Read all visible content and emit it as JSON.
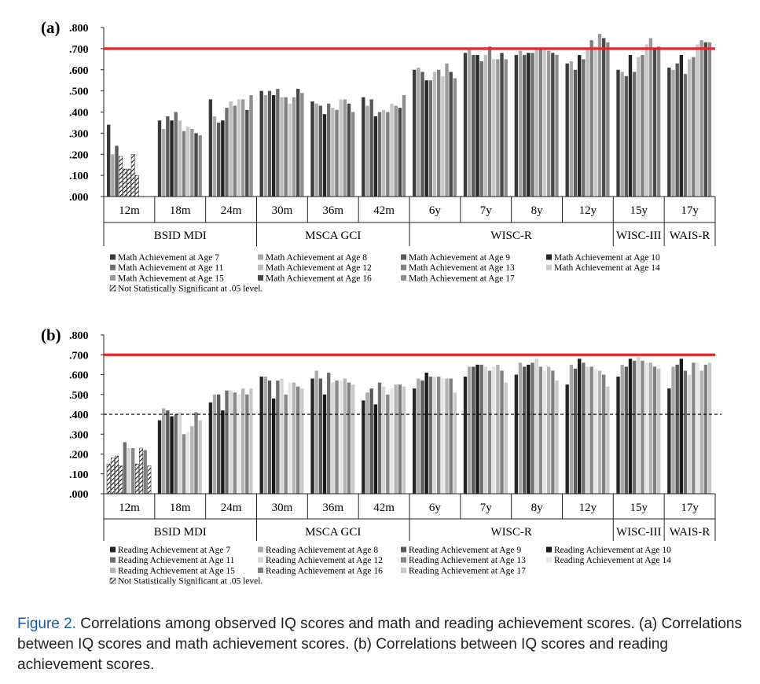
{
  "figure": {
    "caption_label": "Figure 2.",
    "caption_text": "Correlations among observed IQ scores and math and reading achievement scores. (a) Correlations between IQ scores and math achievement scores. (b) Correlations between IQ scores and reading achievement scores."
  },
  "chart_data": [
    {
      "type": "bar",
      "panel_label": "(a)",
      "title": "Correlations between IQ scores and math achievement scores",
      "ylim": [
        0,
        0.8
      ],
      "yticks": [
        ".000",
        ".100",
        ".200",
        ".300",
        ".400",
        ".500",
        ".600",
        ".700",
        ".800"
      ],
      "reference_line": {
        "value": 0.7,
        "color": "#e8262a"
      },
      "dashed_line": null,
      "categories": [
        "12m",
        "18m",
        "24m",
        "30m",
        "36m",
        "42m",
        "6y",
        "7y",
        "8y",
        "12y",
        "15y",
        "17y"
      ],
      "groups": [
        {
          "label": "BSID MDI",
          "categories": [
            "12m",
            "18m",
            "24m"
          ]
        },
        {
          "label": "MSCA GCI",
          "categories": [
            "30m",
            "36m",
            "42m"
          ]
        },
        {
          "label": "WISC-R",
          "categories": [
            "6y",
            "7y",
            "8y",
            "12y"
          ]
        },
        {
          "label": "WISC-III",
          "categories": [
            "15y"
          ]
        },
        {
          "label": "WAIS-R",
          "categories": [
            "17y"
          ]
        }
      ],
      "series": [
        {
          "name": "Math Achievement at Age 7",
          "color": "#3a3a3a",
          "values": [
            0.34,
            0.36,
            0.46,
            0.5,
            0.45,
            0.47,
            0.6,
            0.68,
            0.67,
            0.63,
            0.6,
            0.61
          ]
        },
        {
          "name": "Math Achievement at Age 8",
          "color": "#a8a8a8",
          "values": [
            0.2,
            0.32,
            0.38,
            0.48,
            0.44,
            0.43,
            0.61,
            0.7,
            0.69,
            0.64,
            0.59,
            0.6
          ]
        },
        {
          "name": "Math Achievement at Age 9",
          "color": "#5a5a5a",
          "values": [
            0.24,
            0.38,
            0.35,
            0.5,
            0.43,
            0.46,
            0.59,
            0.67,
            0.67,
            0.6,
            0.57,
            0.63
          ]
        },
        {
          "name": "Math Achievement at Age 10",
          "color": "#262626",
          "values": [
            0.19,
            0.36,
            0.36,
            0.48,
            0.39,
            0.38,
            0.55,
            0.67,
            0.68,
            0.67,
            0.67,
            0.67
          ]
        },
        {
          "name": "Math Achievement at Age 11",
          "color": "#6e6e6e",
          "values": [
            0.13,
            0.4,
            0.42,
            0.51,
            0.44,
            0.4,
            0.55,
            0.64,
            0.68,
            0.65,
            0.59,
            0.58
          ]
        },
        {
          "name": "Math Achievement at Age 12",
          "color": "#bdbdbd",
          "values": [
            0.13,
            0.36,
            0.45,
            0.47,
            0.42,
            0.41,
            0.59,
            0.67,
            0.7,
            0.7,
            0.66,
            0.65
          ]
        },
        {
          "name": "Math Achievement at Age 13",
          "color": "#808080",
          "values": [
            0.2,
            0.31,
            0.43,
            0.47,
            0.41,
            0.4,
            0.6,
            0.71,
            0.7,
            0.74,
            0.67,
            0.66
          ]
        },
        {
          "name": "Math Achievement at Age 14",
          "color": "#c9c9c9",
          "values": [
            0.1,
            0.33,
            0.46,
            0.44,
            0.46,
            0.44,
            0.57,
            0.65,
            0.7,
            0.71,
            0.72,
            0.72
          ]
        },
        {
          "name": "Math Achievement at Age 15",
          "color": "#9a9a9a",
          "values": [
            null,
            0.32,
            0.46,
            0.47,
            0.46,
            0.43,
            0.63,
            0.65,
            0.69,
            0.77,
            0.75,
            0.74
          ]
        },
        {
          "name": "Math Achievement at Age 16",
          "color": "#4a4a4a",
          "values": [
            null,
            0.3,
            0.41,
            0.51,
            0.44,
            0.42,
            0.59,
            0.68,
            0.68,
            0.75,
            0.7,
            0.73
          ]
        },
        {
          "name": "Math Achievement at Age 17",
          "color": "#8c8c8c",
          "values": [
            null,
            0.29,
            0.48,
            0.49,
            0.4,
            0.48,
            0.56,
            0.65,
            0.67,
            0.73,
            0.71,
            0.73
          ]
        }
      ],
      "not_significant": [
        [
          0,
          3
        ],
        [
          0,
          4
        ],
        [
          0,
          5
        ],
        [
          0,
          6
        ],
        [
          0,
          7
        ]
      ],
      "legend": [
        {
          "text": "Math Achievement at Age 7",
          "color": "#3a3a3a"
        },
        {
          "text": "Math Achievement at Age 8",
          "color": "#a8a8a8"
        },
        {
          "text": "Math Achievement at Age 9",
          "color": "#5a5a5a"
        },
        {
          "text": "Math Achievement at Age 10",
          "color": "#262626"
        },
        {
          "text": "Math Achievement at Age 11",
          "color": "#6e6e6e"
        },
        {
          "text": "Math Achievement at Age 12",
          "color": "#bdbdbd"
        },
        {
          "text": "Math Achievement at Age 13",
          "color": "#808080"
        },
        {
          "text": "Math Achievement at Age 14",
          "color": "#c9c9c9"
        },
        {
          "text": "Math Achievement at Age 15",
          "color": "#9a9a9a"
        },
        {
          "text": "Math Achievement at Age 16",
          "color": "#4a4a4a"
        },
        {
          "text": "Math Achievement at Age 17",
          "color": "#8c8c8c"
        },
        {
          "text": "Not Statistically Significant at .05 level.",
          "color": "hatch"
        }
      ]
    },
    {
      "type": "bar",
      "panel_label": "(b)",
      "title": "Correlations between IQ scores and reading achievement scores",
      "ylim": [
        0,
        0.8
      ],
      "yticks": [
        ".000",
        ".100",
        ".200",
        ".300",
        ".400",
        ".500",
        ".600",
        ".700",
        ".800"
      ],
      "reference_line": {
        "value": 0.7,
        "color": "#e8262a"
      },
      "dashed_line": {
        "value": 0.4,
        "color": "#000000"
      },
      "categories": [
        "12m",
        "18m",
        "24m",
        "30m",
        "36m",
        "42m",
        "6y",
        "7y",
        "8y",
        "12y",
        "15y",
        "17y"
      ],
      "groups": [
        {
          "label": "BSID MDI",
          "categories": [
            "12m",
            "18m",
            "24m"
          ]
        },
        {
          "label": "MSCA GCI",
          "categories": [
            "30m",
            "36m",
            "42m"
          ]
        },
        {
          "label": "WISC-R",
          "categories": [
            "6y",
            "7y",
            "8y",
            "12y"
          ]
        },
        {
          "label": "WISC-III",
          "categories": [
            "15y"
          ]
        },
        {
          "label": "WAIS-R",
          "categories": [
            "17y"
          ]
        }
      ],
      "series": [
        {
          "name": "Reading Achievement at Age 7",
          "color": "#262626",
          "values": [
            0.15,
            0.37,
            0.46,
            0.59,
            0.58,
            0.47,
            0.53,
            0.59,
            0.6,
            0.55,
            0.59,
            0.53
          ]
        },
        {
          "name": "Reading Achievement at Age 8",
          "color": "#a8a8a8",
          "values": [
            0.18,
            0.43,
            0.5,
            0.59,
            0.62,
            0.51,
            0.58,
            0.64,
            0.66,
            0.65,
            0.65,
            0.64
          ]
        },
        {
          "name": "Reading Achievement at Age 9",
          "color": "#5a5a5a",
          "values": [
            0.19,
            0.42,
            0.5,
            0.57,
            0.58,
            0.53,
            0.57,
            0.64,
            0.64,
            0.63,
            0.64,
            0.65
          ]
        },
        {
          "name": "Reading Achievement at Age 10",
          "color": "#1a1a1a",
          "values": [
            0.14,
            0.39,
            0.42,
            0.48,
            0.5,
            0.45,
            0.61,
            0.65,
            0.65,
            0.68,
            0.68,
            0.68
          ]
        },
        {
          "name": "Reading Achievement at Age 11",
          "color": "#6e6e6e",
          "values": [
            0.26,
            0.4,
            0.52,
            0.57,
            0.61,
            0.56,
            0.59,
            0.65,
            0.66,
            0.66,
            0.67,
            0.62
          ]
        },
        {
          "name": "Reading Achievement at Age 12",
          "color": "#d6d6d6",
          "values": [
            0.23,
            0.41,
            0.52,
            0.58,
            0.56,
            0.54,
            0.59,
            0.64,
            0.68,
            0.64,
            0.69,
            0.6
          ]
        },
        {
          "name": "Reading Achievement at Age 13",
          "color": "#888888",
          "values": [
            0.23,
            0.3,
            0.51,
            0.5,
            0.57,
            0.5,
            0.59,
            0.62,
            0.64,
            0.64,
            0.67,
            0.66
          ]
        },
        {
          "name": "Reading Achievement at Age 14",
          "color": "#e6e6e6",
          "values": [
            0.15,
            0.31,
            0.5,
            0.56,
            0.57,
            0.53,
            0.58,
            0.64,
            0.62,
            0.63,
            0.66,
            0.66
          ]
        },
        {
          "name": "Reading Achievement at Age 15",
          "color": "#b4b4b4",
          "values": [
            0.23,
            0.34,
            0.53,
            0.56,
            0.58,
            0.55,
            0.58,
            0.65,
            0.64,
            0.62,
            0.66,
            0.62
          ]
        },
        {
          "name": "Reading Achievement at Age 16",
          "color": "#808080",
          "values": [
            0.22,
            0.41,
            0.5,
            0.54,
            0.56,
            0.55,
            0.58,
            0.62,
            0.62,
            0.6,
            0.64,
            0.65
          ]
        },
        {
          "name": "Reading Achievement at Age 17",
          "color": "#c8c8c8",
          "values": [
            0.14,
            0.37,
            0.53,
            0.53,
            0.55,
            0.54,
            0.51,
            0.56,
            0.57,
            0.54,
            0.63,
            0.66
          ]
        }
      ],
      "not_significant": [
        [
          0,
          0
        ],
        [
          0,
          1
        ],
        [
          0,
          2
        ],
        [
          0,
          3
        ],
        [
          0,
          7
        ],
        [
          0,
          8
        ],
        [
          0,
          10
        ]
      ],
      "legend": [
        {
          "text": "Reading Achievement at Age 7",
          "color": "#262626"
        },
        {
          "text": "Reading Achievement at Age 8",
          "color": "#a8a8a8"
        },
        {
          "text": "Reading Achievement at Age 9",
          "color": "#5a5a5a"
        },
        {
          "text": "Reading Achievement at Age 10",
          "color": "#1a1a1a"
        },
        {
          "text": "Reading Achievement at Age 11",
          "color": "#6e6e6e"
        },
        {
          "text": "Reading Achievement at Age 12",
          "color": "#d6d6d6"
        },
        {
          "text": "Reading Achievement at Age 13",
          "color": "#888888"
        },
        {
          "text": "Reading Achievement at Age 14",
          "color": "#e6e6e6"
        },
        {
          "text": "Reading Achievement at Age 15",
          "color": "#b4b4b4"
        },
        {
          "text": "Reading Achievement at Age 16",
          "color": "#808080"
        },
        {
          "text": "Reading Achievement at Age 17",
          "color": "#c8c8c8"
        },
        {
          "text": "Not Statistically Significant at .05 level.",
          "color": "hatch"
        }
      ]
    }
  ]
}
